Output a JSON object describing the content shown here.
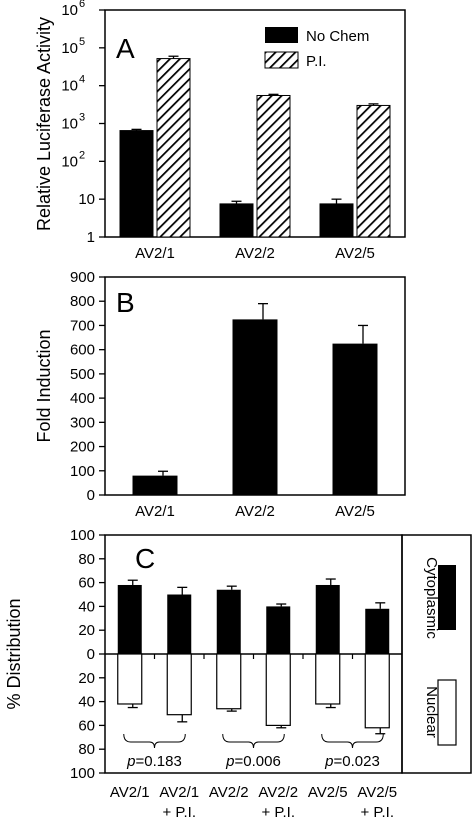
{
  "chart_data": [
    {
      "type": "bar",
      "panel_label": "A",
      "ylabel": "Relative Luciferase Activity",
      "yscale": "log",
      "ylim": [
        1,
        1000000
      ],
      "yticks": [
        {
          "v": 1,
          "base": "1",
          "exp": ""
        },
        {
          "v": 10,
          "base": "10",
          "exp": ""
        },
        {
          "v": 100,
          "base": "10",
          "exp": "2"
        },
        {
          "v": 1000,
          "base": "10",
          "exp": "3"
        },
        {
          "v": 10000,
          "base": "10",
          "exp": "4"
        },
        {
          "v": 100000,
          "base": "10",
          "exp": "5"
        },
        {
          "v": 1000000,
          "base": "10",
          "exp": "6"
        }
      ],
      "categories": [
        "AV2/1",
        "AV2/2",
        "AV2/5"
      ],
      "legend_position": "top-right",
      "series": [
        {
          "name": "No Chem",
          "fill": "solid",
          "values": [
            650,
            7.5,
            7.5
          ],
          "errors": [
            700,
            8.8,
            10
          ]
        },
        {
          "name": "P.I.",
          "fill": "hatched",
          "values": [
            52000,
            5500,
            3000
          ],
          "errors": [
            60000,
            5900,
            3300
          ]
        }
      ]
    },
    {
      "type": "bar",
      "panel_label": "B",
      "ylabel": "Fold Induction",
      "ylim": [
        0,
        900
      ],
      "yticks": [
        "0",
        "100",
        "200",
        "300",
        "400",
        "500",
        "600",
        "700",
        "800",
        "900"
      ],
      "categories": [
        "AV2/1",
        "AV2/2",
        "AV2/5"
      ],
      "series": [
        {
          "name": "",
          "values": [
            80,
            725,
            625
          ],
          "errors": [
            98,
            790,
            700
          ]
        }
      ]
    },
    {
      "type": "bar",
      "panel_label": "C",
      "ylabel": "% Distribution",
      "ylim": [
        -100,
        100
      ],
      "yticks": [
        {
          "v": 100,
          "label": "100"
        },
        {
          "v": 80,
          "label": "80"
        },
        {
          "v": 60,
          "label": "60"
        },
        {
          "v": 40,
          "label": "40"
        },
        {
          "v": 20,
          "label": "20"
        },
        {
          "v": 0,
          "label": "0"
        },
        {
          "v": -20,
          "label": "20"
        },
        {
          "v": -40,
          "label": "40"
        },
        {
          "v": -60,
          "label": "60"
        },
        {
          "v": -80,
          "label": "80"
        },
        {
          "v": -100,
          "label": "100"
        }
      ],
      "categories": [
        {
          "line1": "AV2/1",
          "line2": ""
        },
        {
          "line1": "AV2/1",
          "line2": "+ P.I."
        },
        {
          "line1": "AV2/2",
          "line2": ""
        },
        {
          "line1": "AV2/2",
          "line2": "+ P.I."
        },
        {
          "line1": "AV2/5",
          "line2": ""
        },
        {
          "line1": "AV2/5",
          "line2": "+ P.I."
        }
      ],
      "series": [
        {
          "name": "Cytoplasmic",
          "fill": "solid",
          "values": [
            58,
            50,
            54,
            40,
            58,
            38
          ],
          "errors": [
            62,
            56,
            57,
            42,
            63,
            43
          ]
        },
        {
          "name": "Nuclear",
          "fill": "white",
          "values": [
            42,
            51,
            46,
            60,
            42,
            62
          ],
          "errors": [
            45,
            57,
            48,
            62,
            45,
            67
          ]
        }
      ],
      "annotations": [
        {
          "label": "p",
          "text": "=0.183"
        },
        {
          "label": "p",
          "text": "=0.006"
        },
        {
          "label": "p",
          "text": "=0.023"
        }
      ]
    }
  ]
}
